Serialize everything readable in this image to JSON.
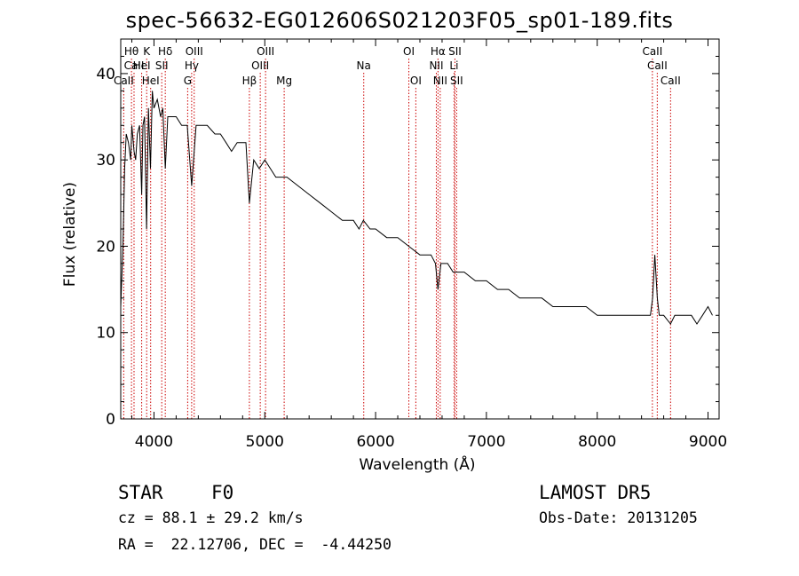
{
  "chart_data": {
    "type": "line",
    "title": "spec-56632-EG012606S021203F05_sp01-189.fits",
    "xlabel": "Wavelength (Å)",
    "ylabel": "Flux (relative)",
    "xlim": [
      3700,
      9100
    ],
    "ylim": [
      0,
      44
    ],
    "xticks": [
      4000,
      5000,
      6000,
      7000,
      8000,
      9000
    ],
    "yticks": [
      0,
      10,
      20,
      30,
      40
    ],
    "grid": false,
    "series": [
      {
        "x": [
          3700,
          3720,
          3735,
          3750,
          3770,
          3790,
          3800,
          3820,
          3835,
          3850,
          3870,
          3889,
          3900,
          3915,
          3933,
          3950,
          3968,
          3985,
          4000,
          4030,
          4060,
          4080,
          4102,
          4125,
          4150,
          4200,
          4250,
          4300,
          4340,
          4380,
          4420,
          4480,
          4550,
          4600,
          4650,
          4700,
          4750,
          4800,
          4830,
          4861,
          4900,
          4950,
          5000,
          5050,
          5100,
          5150,
          5200,
          5300,
          5400,
          5500,
          5600,
          5700,
          5800,
          5850,
          5890,
          5950,
          6000,
          6100,
          6200,
          6300,
          6400,
          6500,
          6540,
          6563,
          6590,
          6650,
          6700,
          6800,
          6900,
          7000,
          7100,
          7200,
          7300,
          7400,
          7500,
          7600,
          7700,
          7800,
          7900,
          8000,
          8100,
          8200,
          8300,
          8400,
          8450,
          8480,
          8500,
          8520,
          8542,
          8560,
          8600,
          8662,
          8700,
          8750,
          8800,
          8850,
          8900,
          8950,
          9000,
          9040
        ],
        "y": [
          13,
          20,
          29,
          33,
          32,
          30,
          34,
          31,
          30,
          33,
          34,
          26,
          34,
          35,
          22,
          36,
          29,
          38,
          36,
          37,
          35,
          36,
          29,
          35,
          35,
          35,
          34,
          34,
          27,
          34,
          34,
          34,
          33,
          33,
          32,
          31,
          32,
          32,
          32,
          25,
          30,
          29,
          30,
          29,
          28,
          28,
          28,
          27,
          26,
          25,
          24,
          23,
          23,
          22,
          23,
          22,
          22,
          21,
          21,
          20,
          19,
          19,
          18,
          15,
          18,
          18,
          17,
          17,
          16,
          16,
          15,
          15,
          14,
          14,
          14,
          13,
          13,
          13,
          13,
          12,
          12,
          12,
          12,
          12,
          12,
          12,
          14,
          19,
          14,
          12,
          12,
          11,
          12,
          12,
          12,
          12,
          11,
          12,
          13,
          12
        ]
      }
    ],
    "lines": [
      {
        "label": "CaII",
        "x": 3727,
        "row": 3
      },
      {
        "label": "Hθ",
        "x": 3797,
        "row": 1
      },
      {
        "label": "CaII",
        "x": 3820,
        "row": 2
      },
      {
        "label": "K",
        "x": 3934,
        "row": 1
      },
      {
        "label": "HeI",
        "x": 3889,
        "row": 2
      },
      {
        "label": "HeI",
        "x": 3970,
        "row": 3
      },
      {
        "label": "SII",
        "x": 4070,
        "row": 2
      },
      {
        "label": "Hδ",
        "x": 4102,
        "row": 1
      },
      {
        "label": "OIII",
        "x": 4363,
        "row": 1
      },
      {
        "label": "Hγ",
        "x": 4340,
        "row": 2
      },
      {
        "label": "G",
        "x": 4304,
        "row": 3
      },
      {
        "label": "Hβ",
        "x": 4861,
        "row": 3
      },
      {
        "label": "OIII",
        "x": 4959,
        "row": 2
      },
      {
        "label": "OIII",
        "x": 5007,
        "row": 1
      },
      {
        "label": "Mg",
        "x": 5175,
        "row": 3
      },
      {
        "label": "Na",
        "x": 5893,
        "row": 2
      },
      {
        "label": "OI",
        "x": 6300,
        "row": 1
      },
      {
        "label": "OI",
        "x": 6363,
        "row": 3
      },
      {
        "label": "Hα",
        "x": 6563,
        "row": 1
      },
      {
        "label": "NII",
        "x": 6548,
        "row": 2
      },
      {
        "label": "NII",
        "x": 6583,
        "row": 3
      },
      {
        "label": "SII",
        "x": 6716,
        "row": 1
      },
      {
        "label": "Li",
        "x": 6708,
        "row": 2
      },
      {
        "label": "SII",
        "x": 6731,
        "row": 3
      },
      {
        "label": "CaII",
        "x": 8498,
        "row": 1
      },
      {
        "label": "CaII",
        "x": 8542,
        "row": 2
      },
      {
        "label": "CaII",
        "x": 8662,
        "row": 3
      }
    ]
  },
  "info": {
    "obj_class": "STAR",
    "subclass": "F0",
    "survey": "LAMOST DR5",
    "cz": "cz = 88.1 ± 29.2 km/s",
    "obs_date": "Obs-Date: 20131205",
    "radec": "RA =  22.12706, DEC =  -4.44250"
  },
  "colors": {
    "spectrum": "#000000",
    "line_marker": "#cc0000",
    "axis": "#000000"
  }
}
